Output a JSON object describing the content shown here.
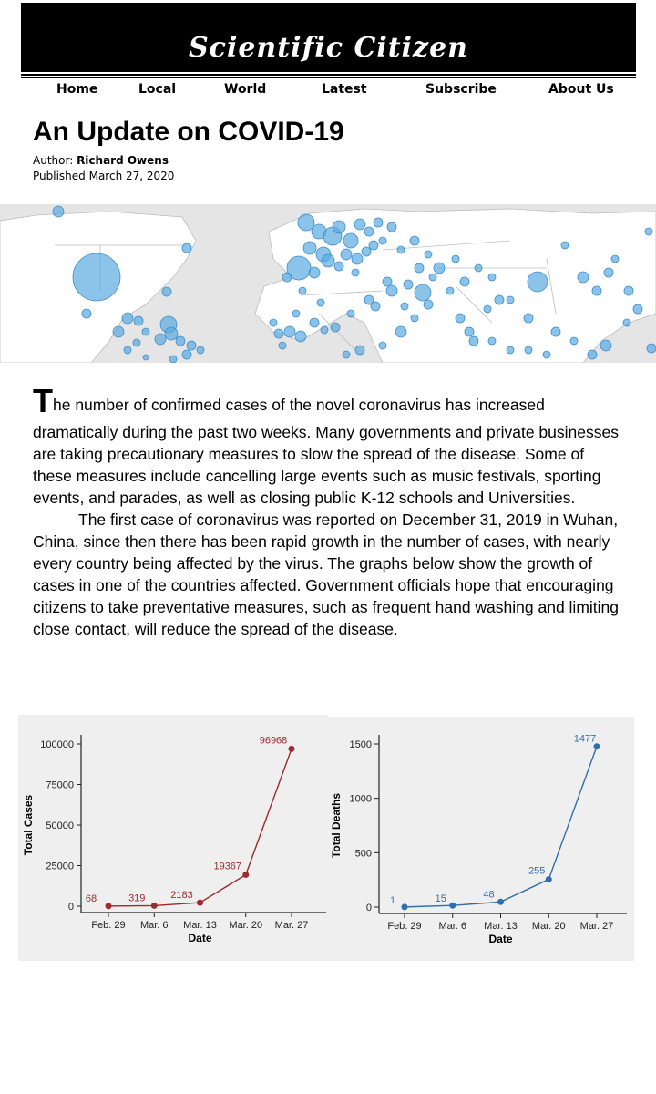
{
  "site": {
    "title": "Scientific Citizen"
  },
  "nav": [
    "Home",
    "Local",
    "World",
    "Latest",
    "Subscribe",
    "About Us"
  ],
  "article": {
    "title": "An Update on COVID-19",
    "author_label": "Author:",
    "author": "Richard Owens",
    "published": "Published March 27, 2020",
    "drop_cap": "T",
    "p1_first": "he number of confirmed cases of the novel coronavirus has increased",
    "p1_rest": "dramatically during the past two weeks. Many governments and private businesses are taking precautionary measures to slow the spread of the disease. Some of these measures include cancelling large events such as music festivals, sporting events, and parades, as well as closing public K-12 schools and Universities.",
    "p2": "The first case of coronavirus was reported on December 31, 2019 in Wuhan, China, since then there has been rapid growth in the number of cases, with nearly every country being affected by the virus. The graphs below show the growth of cases in one of the countries affected. Government officials hope that encouraging citizens to take preventative measures, such as frequent hand washing and limiting close contact, will reduce the spread of the disease."
  },
  "colors": {
    "cases": "#9e2a2f",
    "deaths": "#2f6fad",
    "map_dot": "#5aa9e0"
  },
  "chart_data": [
    {
      "type": "line",
      "title": "",
      "xlabel": "Date",
      "ylabel": "Total Cases",
      "categories": [
        "Feb. 29",
        "Mar. 6",
        "Mar. 13",
        "Mar. 20",
        "Mar. 27"
      ],
      "values": [
        68,
        319,
        2183,
        19367,
        96968
      ],
      "ylim": [
        0,
        100000
      ],
      "yticks": [
        0,
        25000,
        50000,
        75000,
        100000
      ],
      "grid": false
    },
    {
      "type": "line",
      "title": "",
      "xlabel": "Date",
      "ylabel": "Total Deaths",
      "categories": [
        "Feb. 29",
        "Mar. 6",
        "Mar. 13",
        "Mar. 20",
        "Mar. 27"
      ],
      "values": [
        1,
        15,
        48,
        255,
        1477
      ],
      "ylim": [
        0,
        1500
      ],
      "yticks": [
        0,
        500,
        1000,
        1500
      ],
      "grid": false
    }
  ]
}
